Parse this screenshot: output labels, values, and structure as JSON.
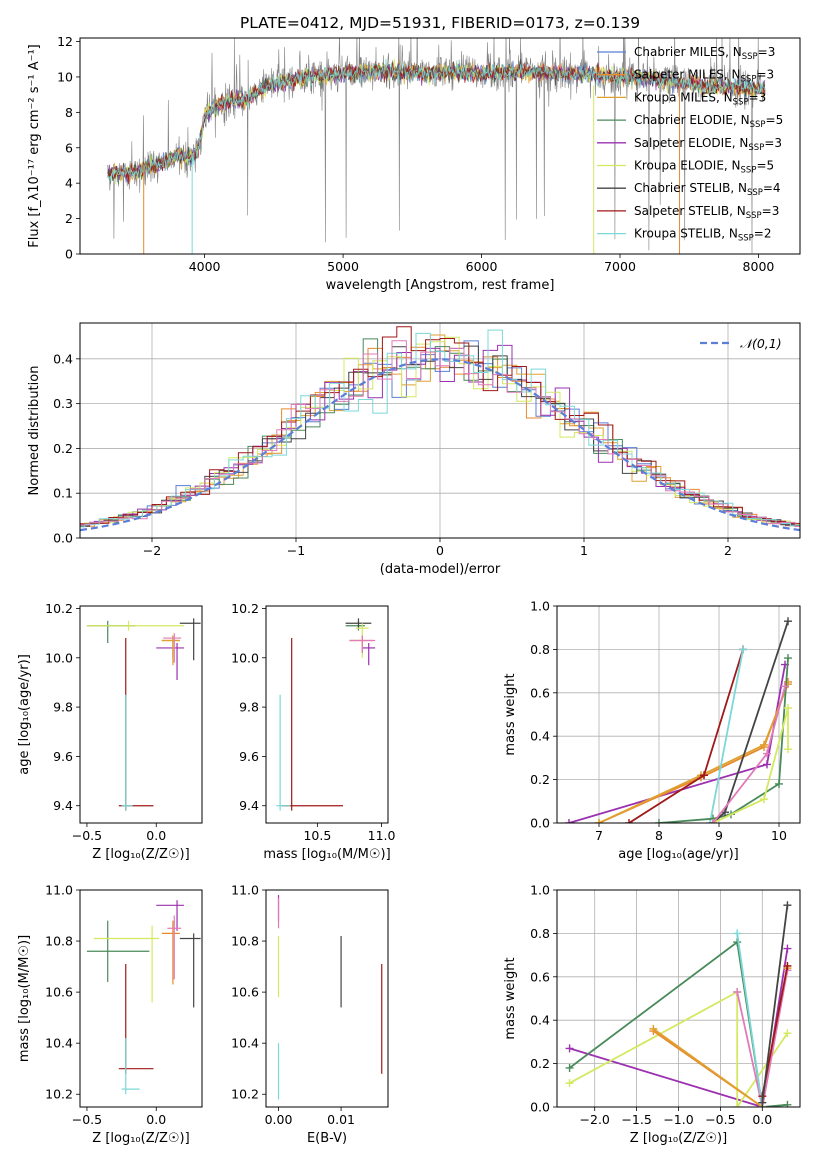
{
  "figure_title": "PLATE=0412, MJD=51931, FIBERID=0173, z=0.139",
  "colors": {
    "Chabrier MILES": "#5b7fd6",
    "Salpeter MILES": "#e68a2e",
    "Kroupa MILES": "#e0a030",
    "Chabrier ELODIE": "#4a8a5a",
    "Salpeter ELODIE": "#9b30b0",
    "Kroupa ELODIE": "#d4e860",
    "Chabrier STELIB": "#444444",
    "Salpeter STELIB": "#a01818",
    "Kroupa STELIB": "#7ad8d8",
    "pink": "#e07ab8",
    "data": "#808080",
    "normal": "#5b7fd6"
  },
  "chart_data": [
    {
      "id": "spectrum",
      "type": "line",
      "title": "PLATE=0412, MJD=51931, FIBERID=0173, z=0.139",
      "xlabel": "wavelength [Angstrom, rest frame]",
      "ylabel": "Flux [f_λ10⁻¹⁷ erg cm⁻² s⁻¹ A⁻¹]",
      "xlim": [
        3100,
        8300
      ],
      "ylim": [
        0,
        12.2
      ],
      "xticks": [
        4000,
        5000,
        6000,
        7000,
        8000
      ],
      "yticks": [
        0,
        2,
        4,
        6,
        8,
        10,
        12
      ],
      "legend": [
        {
          "label": "Chabrier MILES, N",
          "sub": "SSP",
          "n": "=3",
          "key": "Chabrier MILES"
        },
        {
          "label": "Salpeter MILES, N",
          "sub": "SSP",
          "n": "=3",
          "key": "Salpeter MILES"
        },
        {
          "label": "Kroupa MILES, N",
          "sub": "SSP",
          "n": "=3",
          "key": "Kroupa MILES"
        },
        {
          "label": "Chabrier ELODIE, N",
          "sub": "SSP",
          "n": "=5",
          "key": "Chabrier ELODIE"
        },
        {
          "label": "Salpeter ELODIE, N",
          "sub": "SSP",
          "n": "=3",
          "key": "Salpeter ELODIE"
        },
        {
          "label": "Kroupa ELODIE, N",
          "sub": "SSP",
          "n": "=5",
          "key": "Kroupa ELODIE"
        },
        {
          "label": "Chabrier STELIB, N",
          "sub": "SSP",
          "n": "=4",
          "key": "Chabrier STELIB"
        },
        {
          "label": "Salpeter STELIB, N",
          "sub": "SSP",
          "n": "=3",
          "key": "Salpeter STELIB"
        },
        {
          "label": "Kroupa STELIB, N",
          "sub": "SSP",
          "n": "=2",
          "key": "Kroupa STELIB"
        }
      ],
      "model_continuum": [
        [
          3300,
          4.5
        ],
        [
          3500,
          4.6
        ],
        [
          3600,
          4.9
        ],
        [
          3700,
          5.1
        ],
        [
          3800,
          5.6
        ],
        [
          3900,
          5.4
        ],
        [
          3950,
          5.8
        ],
        [
          4000,
          7.8
        ],
        [
          4100,
          8.4
        ],
        [
          4200,
          8.7
        ],
        [
          4300,
          8.7
        ],
        [
          4400,
          9.3
        ],
        [
          4500,
          9.6
        ],
        [
          4600,
          9.8
        ],
        [
          4700,
          10.0
        ],
        [
          4800,
          10.1
        ],
        [
          4900,
          10.1
        ],
        [
          5000,
          10.2
        ],
        [
          5200,
          10.3
        ],
        [
          5400,
          10.3
        ],
        [
          5600,
          10.2
        ],
        [
          5800,
          10.3
        ],
        [
          6000,
          10.2
        ],
        [
          6200,
          10.3
        ],
        [
          6400,
          10.2
        ],
        [
          6600,
          10.2
        ],
        [
          6800,
          10.1
        ],
        [
          7000,
          10.0
        ],
        [
          7200,
          9.9
        ],
        [
          7400,
          9.7
        ],
        [
          7600,
          9.5
        ],
        [
          7800,
          9.4
        ],
        [
          8000,
          9.3
        ]
      ],
      "data_range": [
        3300,
        8050
      ]
    },
    {
      "id": "residuals",
      "type": "step",
      "xlabel": "(data-model)/error",
      "ylabel": "Normed distribution",
      "xlim": [
        -2.5,
        2.5
      ],
      "ylim": [
        0,
        0.48
      ],
      "xticks": [
        -2,
        -1,
        0,
        1,
        2
      ],
      "yticks": [
        0.0,
        0.1,
        0.2,
        0.3,
        0.4
      ],
      "legend": [
        {
          "label": "𝒩(0,1)",
          "style": "dashed"
        }
      ],
      "bin_width": 0.1
    },
    {
      "id": "age_vs_Z",
      "type": "errorbar",
      "xlabel": "Z [log₁₀(Z/Z☉)]",
      "ylabel": "age  [log₁₀(age/yr)]",
      "xlim": [
        -0.55,
        0.33
      ],
      "ylim": [
        9.33,
        10.21
      ],
      "xticks": [
        -0.5,
        0.0,
        0.5
      ],
      "yticks": [
        9.4,
        9.6,
        9.8,
        10.0,
        10.2
      ],
      "points": [
        {
          "key": "Chabrier ELODIE",
          "x": -0.35,
          "y": 10.13,
          "xerr": [
            0.15,
            0.2
          ],
          "yerr": [
            0.07,
            0.02
          ]
        },
        {
          "key": "Kroupa ELODIE",
          "x": -0.2,
          "y": 10.13,
          "xerr": [
            0.3,
            0.4
          ],
          "yerr": [
            0.02,
            0.02
          ]
        },
        {
          "key": "Chabrier STELIB",
          "x": 0.27,
          "y": 10.14,
          "xerr": [
            0.1,
            0.05
          ],
          "yerr": [
            0.15,
            0.02
          ]
        },
        {
          "key": "Salpeter ELODIE",
          "x": 0.15,
          "y": 10.04,
          "xerr": [
            0.15,
            0.05
          ],
          "yerr": [
            0.13,
            0.02
          ]
        },
        {
          "key": "Salpeter MILES",
          "x": 0.12,
          "y": 10.07,
          "xerr": [
            0.08,
            0.05
          ],
          "yerr": [
            0.07,
            0.02
          ]
        },
        {
          "key": "Kroupa MILES",
          "x": 0.12,
          "y": 10.07,
          "xerr": [
            0.08,
            0.05
          ],
          "yerr": [
            0.1,
            0.02
          ]
        },
        {
          "key": "pink",
          "x": 0.13,
          "y": 10.08,
          "xerr": [
            0.08,
            0.05
          ],
          "yerr": [
            0.1,
            0.02
          ]
        },
        {
          "key": "Salpeter STELIB",
          "x": -0.22,
          "y": 9.4,
          "xerr": [
            0.05,
            0.2
          ],
          "yerr": [
            0.02,
            0.68
          ]
        },
        {
          "key": "Kroupa STELIB",
          "x": -0.22,
          "y": 9.4,
          "xerr": [
            0.03,
            0.05
          ],
          "yerr": [
            0.02,
            0.45
          ]
        }
      ]
    },
    {
      "id": "age_vs_mass",
      "type": "errorbar",
      "xlabel": "mass [log₁₀(M/M☉)]",
      "ylabel": "",
      "xlim": [
        10.1,
        11.05
      ],
      "ylim": [
        9.33,
        10.21
      ],
      "xticks": [
        10.5,
        11.0
      ],
      "yticks": [
        9.4,
        9.6,
        9.8,
        10.0,
        10.2
      ],
      "points": [
        {
          "key": "Chabrier ELODIE",
          "x": 10.82,
          "y": 10.13,
          "xerr": [
            0.1,
            0.05
          ],
          "yerr": [
            0.02,
            0.02
          ]
        },
        {
          "key": "Chabrier STELIB",
          "x": 10.82,
          "y": 10.14,
          "xerr": [
            0.1,
            0.1
          ],
          "yerr": [
            0.02,
            0.02
          ]
        },
        {
          "key": "Kroupa ELODIE",
          "x": 10.85,
          "y": 10.12,
          "xerr": [
            0.05,
            0.05
          ],
          "yerr": [
            0.12,
            0.02
          ]
        },
        {
          "key": "Salpeter ELODIE",
          "x": 10.9,
          "y": 10.04,
          "xerr": [
            0.05,
            0.05
          ],
          "yerr": [
            0.07,
            0.02
          ]
        },
        {
          "key": "Salpeter MILES",
          "x": 10.85,
          "y": 10.07,
          "xerr": [
            0.1,
            0.08
          ],
          "yerr": [
            0.05,
            0.02
          ]
        },
        {
          "key": "pink",
          "x": 10.85,
          "y": 10.07,
          "xerr": [
            0.1,
            0.1
          ],
          "yerr": [
            0.05,
            0.02
          ]
        },
        {
          "key": "Salpeter STELIB",
          "x": 10.3,
          "y": 9.4,
          "xerr": [
            0.08,
            0.4
          ],
          "yerr": [
            0.02,
            0.68
          ]
        },
        {
          "key": "Kroupa STELIB",
          "x": 10.21,
          "y": 9.4,
          "xerr": [
            0.03,
            0.08
          ],
          "yerr": [
            0.02,
            0.45
          ]
        }
      ]
    },
    {
      "id": "weight_vs_age",
      "type": "line",
      "xlabel": "age  [log₁₀(age/yr)]",
      "ylabel": "mass weight",
      "xlim": [
        6.3,
        10.35
      ],
      "ylim": [
        0,
        1.0
      ],
      "xticks": [
        7,
        8,
        9,
        10
      ],
      "yticks": [
        0.0,
        0.2,
        0.4,
        0.6,
        0.8,
        1.0
      ],
      "series": [
        {
          "key": "Salpeter ELODIE",
          "points": [
            [
              6.5,
              0.0
            ],
            [
              9.8,
              0.27
            ],
            [
              10.1,
              0.73
            ]
          ]
        },
        {
          "key": "Salpeter MILES",
          "points": [
            [
              7.0,
              0.0
            ],
            [
              8.7,
              0.21
            ],
            [
              9.75,
              0.35
            ],
            [
              10.15,
              0.65
            ]
          ]
        },
        {
          "key": "Kroupa MILES",
          "points": [
            [
              7.0,
              0.0
            ],
            [
              8.7,
              0.22
            ],
            [
              9.75,
              0.36
            ],
            [
              10.15,
              0.64
            ]
          ]
        },
        {
          "key": "Salpeter STELIB",
          "points": [
            [
              7.5,
              0.0
            ],
            [
              8.75,
              0.22
            ],
            [
              9.4,
              0.8
            ]
          ]
        },
        {
          "key": "Kroupa STELIB",
          "points": [
            [
              8.85,
              0.0
            ],
            [
              9.4,
              0.8
            ]
          ]
        },
        {
          "key": "Chabrier ELODIE",
          "points": [
            [
              8.0,
              0.0
            ],
            [
              8.9,
              0.02
            ],
            [
              9.2,
              0.04
            ],
            [
              10.0,
              0.18
            ],
            [
              10.15,
              0.76
            ]
          ]
        },
        {
          "key": "Chabrier STELIB",
          "points": [
            [
              8.9,
              0.0
            ],
            [
              9.1,
              0.05
            ],
            [
              10.15,
              0.93
            ]
          ]
        },
        {
          "key": "Kroupa ELODIE",
          "points": [
            [
              8.9,
              0.0
            ],
            [
              9.75,
              0.11
            ],
            [
              10.15,
              0.53
            ],
            [
              10.15,
              0.34
            ]
          ]
        },
        {
          "key": "pink",
          "points": [
            [
              8.9,
              0.0
            ],
            [
              9.8,
              0.32
            ],
            [
              10.1,
              0.63
            ]
          ]
        }
      ]
    },
    {
      "id": "mass_vs_Z",
      "type": "errorbar",
      "xlabel": "Z [log₁₀(Z/Z☉)]",
      "ylabel": "mass [log₁₀(M/M☉)]",
      "xlim": [
        -0.55,
        0.33
      ],
      "ylim": [
        10.15,
        11.0
      ],
      "xticks": [
        -0.5,
        0.0,
        0.5
      ],
      "yticks": [
        10.2,
        10.4,
        10.6,
        10.8,
        11.0
      ],
      "points": [
        {
          "key": "Chabrier ELODIE",
          "x": -0.35,
          "y": 10.76,
          "xerr": [
            0.15,
            0.3
          ],
          "yerr": [
            0.12,
            0.12
          ]
        },
        {
          "key": "Kroupa ELODIE",
          "x": -0.03,
          "y": 10.81,
          "xerr": [
            0.42,
            0.05
          ],
          "yerr": [
            0.25,
            0.05
          ]
        },
        {
          "key": "Salpeter ELODIE",
          "x": 0.15,
          "y": 10.94,
          "xerr": [
            0.15,
            0.05
          ],
          "yerr": [
            0.1,
            0.02
          ]
        },
        {
          "key": "Chabrier STELIB",
          "x": 0.27,
          "y": 10.81,
          "xerr": [
            0.1,
            0.05
          ],
          "yerr": [
            0.27,
            0.02
          ]
        },
        {
          "key": "Salpeter MILES",
          "x": 0.12,
          "y": 10.83,
          "xerr": [
            0.08,
            0.05
          ],
          "yerr": [
            0.2,
            0.05
          ]
        },
        {
          "key": "pink",
          "x": 0.13,
          "y": 10.85,
          "xerr": [
            0.05,
            0.05
          ],
          "yerr": [
            0.2,
            0.05
          ]
        },
        {
          "key": "Salpeter STELIB",
          "x": -0.22,
          "y": 10.3,
          "xerr": [
            0.05,
            0.2
          ],
          "yerr": [
            0.02,
            0.41
          ]
        },
        {
          "key": "Kroupa STELIB",
          "x": -0.22,
          "y": 10.22,
          "xerr": [
            0.03,
            0.1
          ],
          "yerr": [
            0.02,
            0.2
          ]
        }
      ]
    },
    {
      "id": "mass_vs_EBV",
      "type": "errorbar",
      "xlabel": "E(B-V)",
      "ylabel": "",
      "xlim": [
        -0.002,
        0.0175
      ],
      "ylim": [
        10.15,
        11.0
      ],
      "xticks": [
        0.0,
        0.01
      ],
      "yticks": [
        10.2,
        10.4,
        10.6,
        10.8,
        11.0
      ],
      "points": [
        {
          "key": "Salpeter ELODIE",
          "x": 0.0,
          "y": 10.9,
          "xerr": [
            0,
            0
          ],
          "yerr": [
            0.02,
            0.08
          ]
        },
        {
          "key": "pink",
          "x": 0.0,
          "y": 10.9,
          "xerr": [
            0,
            0
          ],
          "yerr": [
            0.05,
            0.07
          ]
        },
        {
          "key": "Kroupa ELODIE",
          "x": 0.0,
          "y": 10.8,
          "xerr": [
            0,
            0
          ],
          "yerr": [
            0.22,
            0.02
          ]
        },
        {
          "key": "Kroupa STELIB",
          "x": 0.0,
          "y": 10.2,
          "xerr": [
            0,
            0
          ],
          "yerr": [
            0.02,
            0.2
          ]
        },
        {
          "key": "Chabrier STELIB",
          "x": 0.01,
          "y": 10.7,
          "xerr": [
            0,
            0
          ],
          "yerr": [
            0.16,
            0.12
          ]
        },
        {
          "key": "Salpeter STELIB",
          "x": 0.0165,
          "y": 10.5,
          "xerr": [
            0,
            0
          ],
          "yerr": [
            0.22,
            0.21
          ]
        }
      ]
    },
    {
      "id": "weight_vs_Z",
      "type": "line",
      "xlabel": "Z [log₁₀(Z/Z☉)]",
      "ylabel": "mass weight",
      "xlim": [
        -2.45,
        0.45
      ],
      "ylim": [
        0,
        1.0
      ],
      "xticks": [
        -2.0,
        -1.5,
        -1.0,
        -0.5,
        0.0
      ],
      "yticks": [
        0.0,
        0.2,
        0.4,
        0.6,
        0.8,
        1.0
      ],
      "series": [
        {
          "key": "Salpeter ELODIE",
          "points": [
            [
              -2.3,
              0.27
            ],
            [
              0.0,
              0.0
            ],
            [
              0.3,
              0.73
            ]
          ]
        },
        {
          "key": "Chabrier ELODIE",
          "points": [
            [
              -2.3,
              0.18
            ],
            [
              -0.3,
              0.76
            ],
            [
              0.0,
              0.0
            ],
            [
              0.3,
              0.01
            ]
          ]
        },
        {
          "key": "Kroupa ELODIE",
          "points": [
            [
              -2.3,
              0.11
            ],
            [
              -0.3,
              0.53
            ],
            [
              -0.3,
              0.0
            ],
            [
              0.3,
              0.34
            ]
          ]
        },
        {
          "key": "Salpeter MILES",
          "points": [
            [
              -1.3,
              0.35
            ],
            [
              0.0,
              0.0
            ],
            [
              0.3,
              0.65
            ]
          ]
        },
        {
          "key": "Kroupa MILES",
          "points": [
            [
              -1.3,
              0.36
            ],
            [
              0.0,
              0.0
            ],
            [
              0.3,
              0.64
            ]
          ]
        },
        {
          "key": "pink",
          "points": [
            [
              -0.3,
              0.53
            ],
            [
              0.0,
              0.0
            ],
            [
              0.3,
              0.63
            ]
          ]
        },
        {
          "key": "Kroupa STELIB",
          "points": [
            [
              -0.3,
              0.8
            ],
            [
              0.0,
              0.0
            ]
          ]
        },
        {
          "key": "Salpeter STELIB",
          "points": [
            [
              0.0,
              0.05
            ],
            [
              0.3,
              0.65
            ]
          ]
        },
        {
          "key": "Chabrier STELIB",
          "points": [
            [
              0.0,
              0.02
            ],
            [
              0.3,
              0.93
            ]
          ]
        }
      ]
    }
  ]
}
